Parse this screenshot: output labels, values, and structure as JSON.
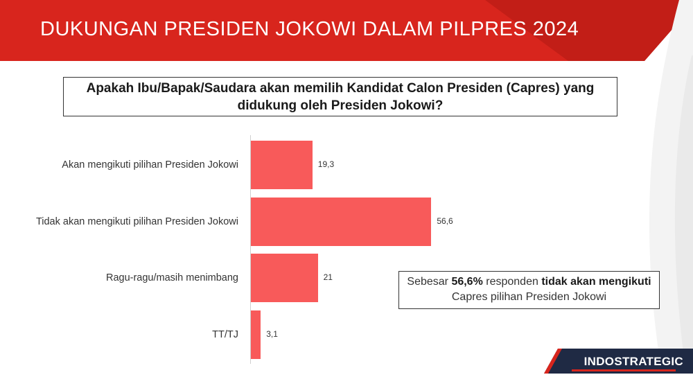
{
  "title": "DUKUNGAN PRESIDEN JOKOWI DALAM PILPRES 2024",
  "question": "Apakah Ibu/Bapak/Saudara akan memilih Kandidat Calon Presiden (Capres) yang didukung oleh Presiden Jokowi?",
  "callout": {
    "t1": "Sebesar ",
    "t2": "56,6%",
    "t3": " responden ",
    "t4": "tidak akan mengikuti",
    "t5": " Capres pilihan Presiden Jokowi"
  },
  "logo": "INDOSTRATEGIC",
  "colors": {
    "bar": "#f85a5a",
    "header": "#d8251d",
    "accent_dark": "#b01c15"
  },
  "chart_data": {
    "type": "bar",
    "orientation": "horizontal",
    "categories": [
      "Akan mengikuti pilihan Presiden Jokowi",
      "Tidak akan mengikuti pilihan Presiden Jokowi",
      "Ragu-ragu/masih menimbang",
      "TT/TJ"
    ],
    "values": [
      19.3,
      56.6,
      21,
      3.1
    ],
    "value_labels": [
      "19,3",
      "56,6",
      "21",
      "3,1"
    ],
    "xlim": [
      0,
      60
    ],
    "grid": false,
    "legend": "none"
  }
}
